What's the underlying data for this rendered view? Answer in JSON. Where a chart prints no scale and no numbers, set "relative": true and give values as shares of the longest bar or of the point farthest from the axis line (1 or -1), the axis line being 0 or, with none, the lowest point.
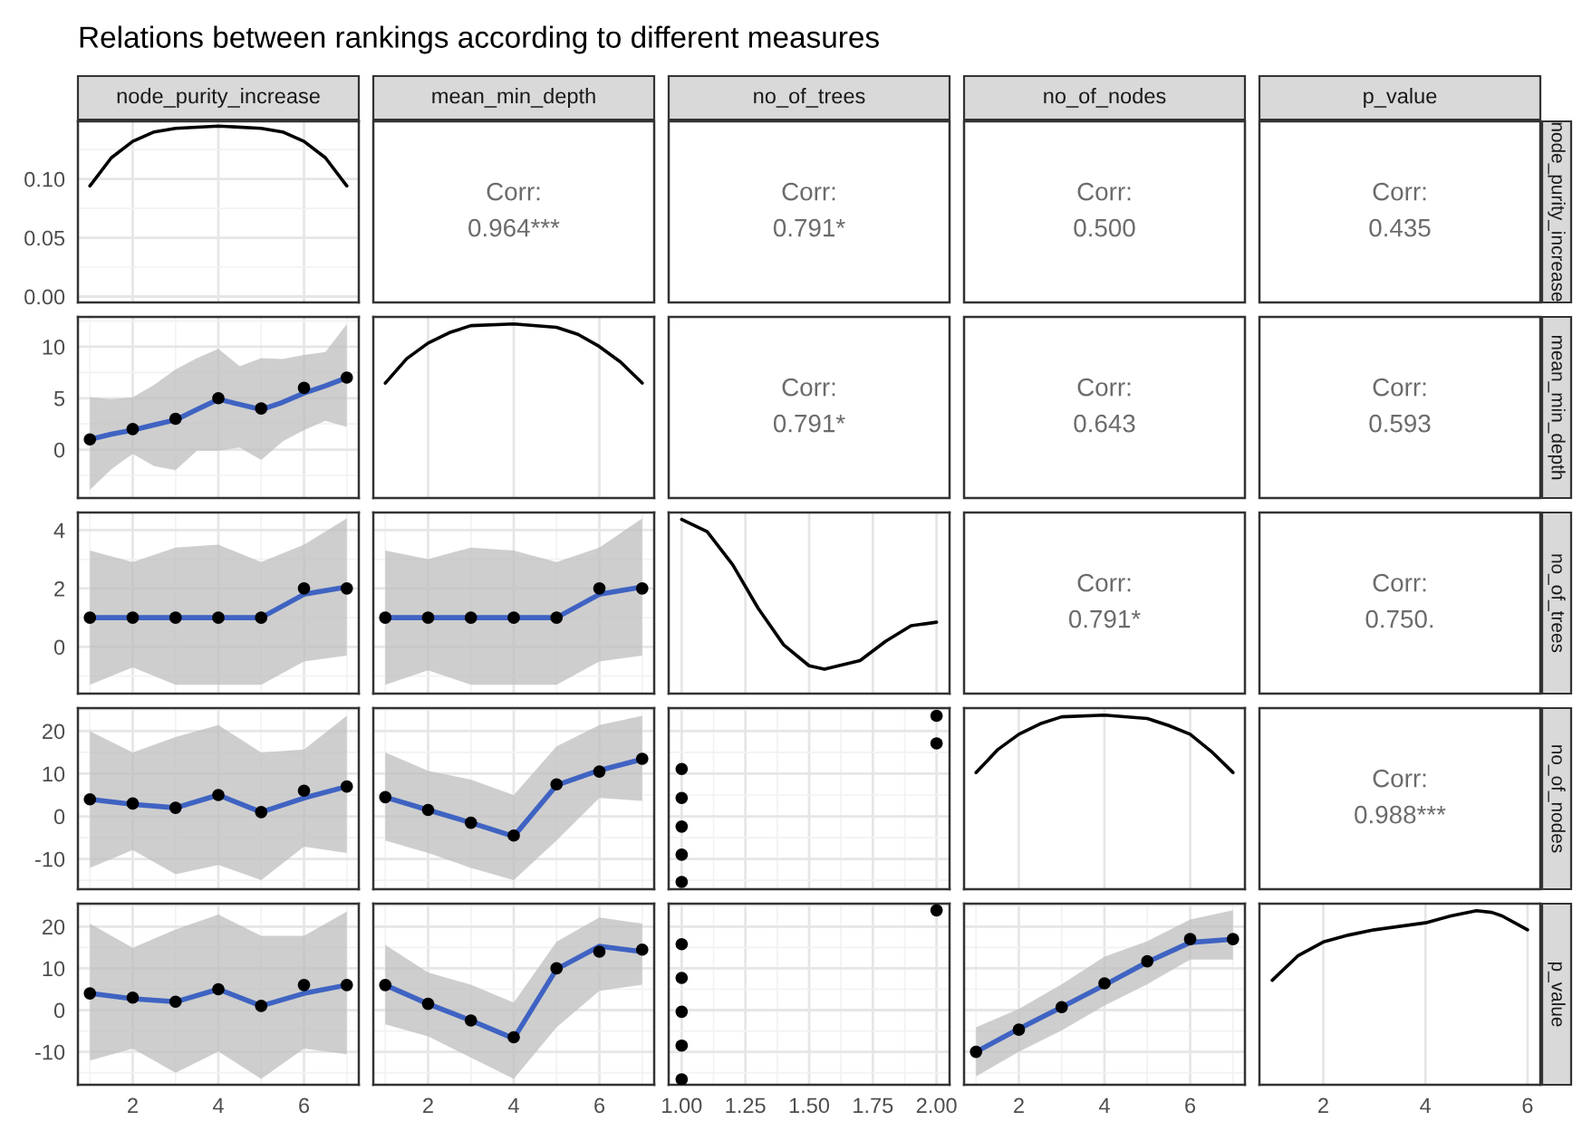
{
  "chart_data": [
    {
      "type": "line",
      "title": "Relations between rankings according to different measures",
      "x2label": "node_purity_increase",
      "series": [
        {
          "color": "#000000",
          "x": [
            1,
            1.5,
            2,
            2.5,
            3,
            4,
            5,
            5.5,
            6,
            6.5,
            7
          ],
          "values": [
            0.094,
            0.118,
            0.132,
            0.14,
            0.143,
            0.145,
            0.143,
            0.14,
            0.132,
            0.118,
            0.094
          ]
        }
      ],
      "xlim": [
        0.72,
        7.28
      ],
      "xticks": [
        2,
        4,
        6
      ],
      "ylim": [
        -0.005,
        0.149
      ],
      "yticks": [
        {
          "value": 0,
          "label": "0.00"
        },
        {
          "value": 0.05,
          "label": "0.05"
        },
        {
          "value": 0.1,
          "label": "0.10"
        }
      ],
      "grid": true,
      "tick_labels": "y"
    },
    {
      "type": "other",
      "x2label": "mean_min_depth",
      "annotations": [
        "Corr:",
        "0.964***"
      ]
    },
    {
      "type": "other",
      "x2label": "no_of_trees",
      "annotations": [
        "Corr:",
        "0.791*"
      ]
    },
    {
      "type": "other",
      "x2label": "no_of_nodes",
      "annotations": [
        "Corr:",
        "0.500"
      ]
    },
    {
      "type": "other",
      "x2label": "p_value",
      "y2label": "node_purity_increase",
      "annotations": [
        "Corr:",
        "0.435"
      ]
    },
    {
      "type": "scatter",
      "series": [
        {
          "type": "scatter",
          "marker": "circle",
          "color": "#000000",
          "x": [
            1,
            2,
            3,
            4,
            5,
            6,
            7
          ],
          "values": [
            1,
            2,
            3,
            5,
            4,
            6,
            7
          ]
        },
        {
          "type": "line",
          "color": "#3f63c2",
          "x": [
            1,
            1.5,
            2,
            2.5,
            3,
            3.5,
            4,
            4.5,
            5,
            5.5,
            6,
            6.5,
            7
          ],
          "values": [
            1.0,
            1.5,
            1.9,
            2.4,
            2.9,
            3.9,
            4.9,
            4.4,
            3.9,
            4.6,
            5.5,
            6.2,
            7.0
          ],
          "lower": [
            -3.9,
            -1.9,
            -0.4,
            -1.6,
            -2,
            -0.1,
            -0.1,
            0.2,
            -1,
            0.8,
            1.9,
            2.8,
            2.2
          ],
          "upper": [
            5.1,
            4.9,
            5.1,
            6.3,
            7.8,
            8.9,
            9.8,
            8.1,
            8.9,
            8.8,
            9.2,
            9.5,
            12.2
          ]
        }
      ],
      "xlim": [
        0.72,
        7.28
      ],
      "xticks": [
        2,
        4,
        6
      ],
      "ylim": [
        -4.7,
        12.9
      ],
      "yticks": [
        0,
        5,
        10
      ],
      "grid": true,
      "tick_labels": "y"
    },
    {
      "type": "line",
      "relative": true,
      "series": [
        {
          "color": "#000000",
          "x": [
            1,
            1.5,
            2,
            2.5,
            3,
            4,
            5,
            5.5,
            6,
            6.5,
            7
          ],
          "values": [
            0.66,
            0.8,
            0.89,
            0.95,
            0.99,
            1.0,
            0.98,
            0.94,
            0.87,
            0.78,
            0.66
          ]
        }
      ],
      "xlim": [
        0.72,
        7.28
      ],
      "xticks": [
        2,
        4,
        6
      ],
      "grid": true,
      "tick_labels": false
    },
    {
      "type": "other",
      "annotations": [
        "Corr:",
        "0.791*"
      ]
    },
    {
      "type": "other",
      "annotations": [
        "Corr:",
        "0.643"
      ]
    },
    {
      "type": "other",
      "y2label": "mean_min_depth",
      "annotations": [
        "Corr:",
        "0.593"
      ]
    },
    {
      "type": "scatter",
      "series": [
        {
          "type": "scatter",
          "marker": "circle",
          "color": "#000000",
          "x": [
            1,
            2,
            3,
            4,
            5,
            6,
            7
          ],
          "values": [
            1,
            1,
            1,
            1,
            1,
            2,
            2
          ]
        },
        {
          "type": "line",
          "color": "#3f63c2",
          "x": [
            1,
            2,
            3,
            4,
            5,
            6,
            7
          ],
          "values": [
            1,
            1,
            1,
            1,
            1,
            1.8,
            2.05
          ],
          "lower": [
            -1.3,
            -0.7,
            -1.3,
            -1.3,
            -1.3,
            -0.5,
            -0.3
          ],
          "upper": [
            3.3,
            2.9,
            3.4,
            3.5,
            2.9,
            3.5,
            4.4
          ]
        }
      ],
      "xlim": [
        0.72,
        7.28
      ],
      "xticks": [
        2,
        4,
        6
      ],
      "ylim": [
        -1.6,
        4.6
      ],
      "yticks": [
        0,
        2,
        4
      ],
      "grid": true,
      "tick_labels": "y"
    },
    {
      "type": "scatter",
      "series": [
        {
          "type": "scatter",
          "marker": "circle",
          "color": "#000000",
          "x": [
            1,
            2,
            3,
            4,
            5,
            6,
            7
          ],
          "values": [
            1,
            1,
            1,
            1,
            1,
            2,
            2
          ]
        },
        {
          "type": "line",
          "color": "#3f63c2",
          "x": [
            1,
            2,
            3,
            4,
            5,
            6,
            7
          ],
          "values": [
            1,
            1,
            1,
            1,
            1,
            1.8,
            2.05
          ],
          "lower": [
            -1.3,
            -0.8,
            -1.3,
            -1.3,
            -1.3,
            -0.5,
            -0.3
          ],
          "upper": [
            3.3,
            3.0,
            3.4,
            3.3,
            2.9,
            3.4,
            4.4
          ]
        }
      ],
      "xlim": [
        0.72,
        7.28
      ],
      "xticks": [
        2,
        4,
        6
      ],
      "ylim": [
        -1.6,
        4.6
      ],
      "yticks": [
        0,
        2,
        4
      ],
      "grid": true,
      "tick_labels": false
    },
    {
      "type": "line",
      "relative": true,
      "series": [
        {
          "color": "#000000",
          "x": [
            1.0,
            1.1,
            1.2,
            1.3,
            1.4,
            1.5,
            1.56,
            1.7,
            1.8,
            1.9,
            2.0
          ],
          "values": [
            1.0,
            0.93,
            0.74,
            0.49,
            0.28,
            0.16,
            0.14,
            0.19,
            0.3,
            0.39,
            0.41
          ]
        }
      ],
      "xlim": [
        0.949,
        2.051
      ],
      "xticks": [
        1,
        1.25,
        1.5,
        1.75,
        2
      ],
      "grid": true,
      "tick_labels": false
    },
    {
      "type": "other",
      "annotations": [
        "Corr:",
        "0.791*"
      ]
    },
    {
      "type": "other",
      "y2label": "no_of_trees",
      "annotations": [
        "Corr:",
        "0.750."
      ]
    },
    {
      "type": "scatter",
      "series": [
        {
          "type": "scatter",
          "marker": "circle",
          "color": "#000000",
          "x": [
            1,
            2,
            3,
            4,
            5,
            6,
            7
          ],
          "values": [
            4,
            3,
            2,
            5,
            1,
            6,
            7
          ]
        },
        {
          "type": "line",
          "color": "#3f63c2",
          "x": [
            1,
            2,
            3,
            4,
            5,
            6,
            7
          ],
          "values": [
            4,
            2.8,
            2,
            5,
            1,
            4.3,
            7
          ],
          "lower": [
            -12.1,
            -7.9,
            -13.6,
            -11.4,
            -15,
            -7.1,
            -8.6
          ],
          "upper": [
            20,
            15,
            18.6,
            21.4,
            15,
            15.7,
            23.6
          ]
        }
      ],
      "xlim": [
        0.72,
        7.28
      ],
      "xticks": [
        2,
        4,
        6
      ],
      "ylim": [
        -17.1,
        25.4
      ],
      "yticks": [
        -10,
        0,
        10,
        20
      ],
      "grid": true,
      "tick_labels": "y"
    },
    {
      "type": "scatter",
      "series": [
        {
          "type": "scatter",
          "marker": "circle",
          "color": "#000000",
          "x": [
            1,
            2,
            3,
            4,
            5,
            6,
            7
          ],
          "values": [
            4.5,
            1.5,
            -1.5,
            -4.5,
            7.5,
            10.5,
            13.5
          ]
        },
        {
          "type": "line",
          "color": "#3f63c2",
          "x": [
            1,
            2,
            3,
            4,
            5,
            6,
            7
          ],
          "values": [
            4.5,
            1.5,
            -1.5,
            -4.7,
            7.3,
            10.8,
            13.4
          ],
          "lower": [
            -5.7,
            -8.6,
            -12.1,
            -15,
            -5.7,
            4.3,
            3.6
          ],
          "upper": [
            15,
            10.7,
            8.6,
            5,
            16.4,
            21.4,
            23.6
          ]
        }
      ],
      "xlim": [
        0.72,
        7.28
      ],
      "xticks": [
        2,
        4,
        6
      ],
      "ylim": [
        -17.1,
        25.4
      ],
      "yticks": [
        -10,
        0,
        10,
        20
      ],
      "grid": true,
      "tick_labels": false
    },
    {
      "type": "scatter",
      "series": [
        {
          "type": "scatter",
          "marker": "circle",
          "color": "#000000",
          "x": [
            1,
            1,
            1,
            1,
            1,
            2,
            2
          ],
          "values": [
            11.1,
            4.3,
            -2.4,
            -9,
            -15.4,
            23.6,
            17.1
          ]
        }
      ],
      "xlim": [
        0.949,
        2.051
      ],
      "xticks": [
        1,
        1.25,
        1.5,
        1.75,
        2
      ],
      "ylim": [
        -17.1,
        25.4
      ],
      "yticks": [
        -10,
        0,
        10,
        20
      ],
      "grid": true,
      "tick_labels": false
    },
    {
      "type": "line",
      "relative": true,
      "series": [
        {
          "color": "#000000",
          "x": [
            1,
            1.5,
            2,
            2.5,
            3,
            4,
            5,
            5.5,
            6,
            6.5,
            7
          ],
          "values": [
            0.67,
            0.8,
            0.89,
            0.95,
            0.99,
            1.0,
            0.98,
            0.94,
            0.89,
            0.79,
            0.67
          ]
        }
      ],
      "xlim": [
        0.72,
        7.28
      ],
      "xticks": [
        2,
        4,
        6
      ],
      "grid": true,
      "tick_labels": false
    },
    {
      "type": "other",
      "y2label": "no_of_nodes",
      "annotations": [
        "Corr:",
        "0.988***"
      ]
    },
    {
      "type": "scatter",
      "series": [
        {
          "type": "scatter",
          "marker": "circle",
          "color": "#000000",
          "x": [
            1,
            2,
            3,
            4,
            5,
            6,
            7
          ],
          "values": [
            4,
            3,
            2,
            5,
            1,
            6,
            6
          ]
        },
        {
          "type": "line",
          "color": "#3f63c2",
          "x": [
            1,
            2,
            3,
            4,
            5,
            6,
            7
          ],
          "values": [
            4,
            2.7,
            2,
            5,
            1,
            4,
            6
          ],
          "lower": [
            -12.1,
            -9.2,
            -15,
            -9.9,
            -16.5,
            -9.2,
            -10.6
          ],
          "upper": [
            20.7,
            14.9,
            19.3,
            22.9,
            17.8,
            17.8,
            23.6
          ]
        }
      ],
      "xlim": [
        0.72,
        7.28
      ],
      "xticks": [
        2,
        4,
        6
      ],
      "ylim": [
        -17.9,
        25.5
      ],
      "yticks": [
        -10,
        0,
        10,
        20
      ],
      "grid": true
    },
    {
      "type": "scatter",
      "series": [
        {
          "type": "scatter",
          "marker": "circle",
          "color": "#000000",
          "x": [
            1,
            2,
            3,
            4,
            5,
            6,
            7
          ],
          "values": [
            6,
            1.5,
            -2.5,
            -6.5,
            10,
            14,
            14.5
          ]
        },
        {
          "type": "line",
          "color": "#3f63c2",
          "x": [
            1,
            2,
            3,
            4,
            5,
            6,
            7
          ],
          "values": [
            6,
            1.5,
            -2.5,
            -6.8,
            9.8,
            15.3,
            14
          ],
          "lower": [
            -3.4,
            -6.3,
            -11.4,
            -16.5,
            -4.1,
            4.6,
            6.1
          ],
          "upper": [
            15.6,
            9,
            6.1,
            1.8,
            16.4,
            22.2,
            20.7
          ]
        }
      ],
      "xlim": [
        0.72,
        7.28
      ],
      "xticks": [
        2,
        4,
        6
      ],
      "ylim": [
        -17.9,
        25.5
      ],
      "yticks": [
        -10,
        0,
        10,
        20
      ],
      "grid": true,
      "tick_labels": "x"
    },
    {
      "type": "scatter",
      "series": [
        {
          "type": "scatter",
          "marker": "circle",
          "color": "#000000",
          "x": [
            1,
            1,
            1,
            1,
            1,
            2
          ],
          "values": [
            15.8,
            7.7,
            -0.4,
            -8.5,
            -16.6,
            23.9
          ]
        }
      ],
      "xlim": [
        0.949,
        2.051
      ],
      "xticks": [
        {
          "value": 1,
          "label": "1.00"
        },
        {
          "value": 1.25,
          "label": "1.25"
        },
        {
          "value": 1.5,
          "label": "1.50"
        },
        {
          "value": 1.75,
          "label": "1.75"
        },
        {
          "value": 2,
          "label": "2.00"
        }
      ],
      "ylim": [
        -17.9,
        25.5
      ],
      "yticks": [
        -10,
        0,
        10,
        20
      ],
      "grid": true,
      "tick_labels": "x"
    },
    {
      "type": "scatter",
      "series": [
        {
          "type": "scatter",
          "marker": "circle",
          "color": "#000000",
          "x": [
            1,
            2,
            3,
            4,
            5,
            6,
            7
          ],
          "values": [
            -10,
            -4.7,
            0.7,
            6.4,
            11.7,
            17,
            17
          ]
        },
        {
          "type": "line",
          "color": "#3f63c2",
          "x": [
            1,
            2,
            3,
            4,
            5,
            6,
            7
          ],
          "values": [
            -10,
            -4.5,
            0.7,
            6,
            11.5,
            16.2,
            17
          ],
          "lower": [
            -15.9,
            -10,
            -4.9,
            1.1,
            6.2,
            12.1,
            12.1
          ],
          "upper": [
            -4.1,
            0.3,
            6.2,
            12.8,
            16.5,
            21.7,
            23.9
          ]
        }
      ],
      "xlim": [
        0.72,
        7.28
      ],
      "xticks": [
        2,
        4,
        6
      ],
      "ylim": [
        -17.9,
        25.5
      ],
      "yticks": [
        -10,
        0,
        10,
        20
      ],
      "grid": true,
      "tick_labels": "x"
    },
    {
      "type": "line",
      "relative": true,
      "y2label": "p_value",
      "series": [
        {
          "color": "#000000",
          "x": [
            1,
            1.5,
            2,
            2.5,
            3,
            4,
            4.5,
            5,
            5.3,
            5.5,
            6
          ],
          "values": [
            0.6,
            0.74,
            0.82,
            0.86,
            0.89,
            0.93,
            0.97,
            1.0,
            0.99,
            0.97,
            0.89
          ]
        }
      ],
      "xlim": [
        0.75,
        6.25
      ],
      "xticks": [
        2,
        4,
        6
      ],
      "grid": true,
      "tick_labels": "x"
    }
  ]
}
